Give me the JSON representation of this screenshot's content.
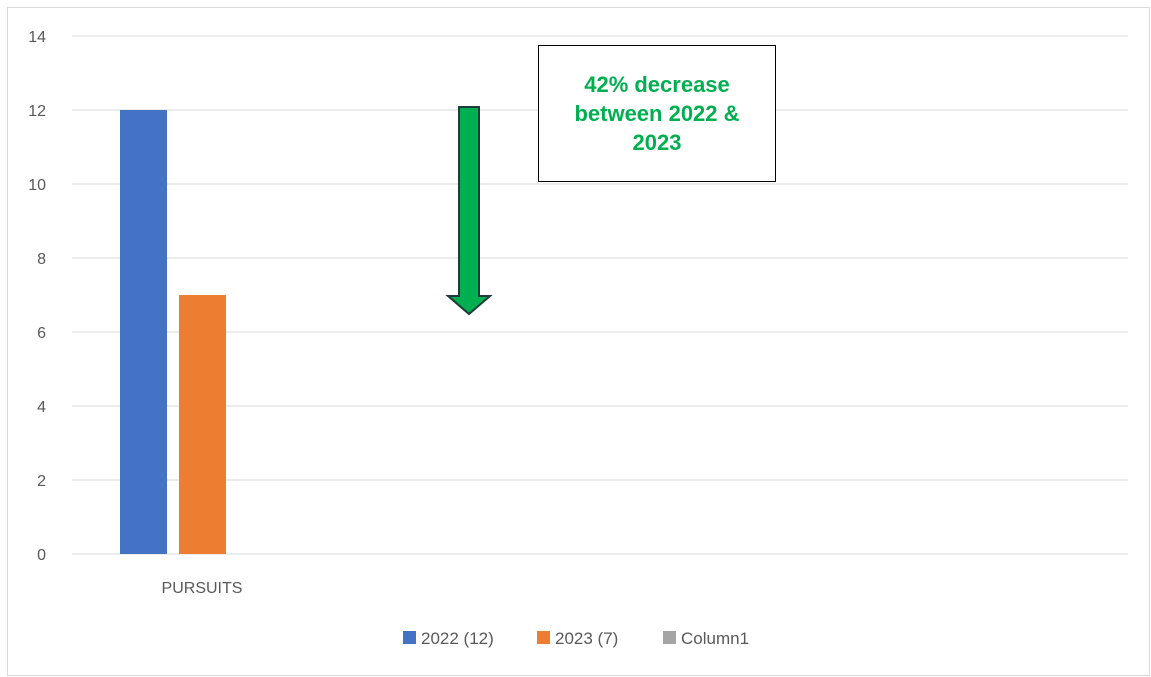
{
  "chart_data": {
    "type": "bar",
    "categories": [
      "PURSUITS"
    ],
    "series": [
      {
        "name": "2022 (12)",
        "values": [
          12
        ],
        "color": "#4472c4"
      },
      {
        "name": "2023 (7)",
        "values": [
          7
        ],
        "color": "#ed7d31"
      },
      {
        "name": "Column1",
        "values": [
          null
        ],
        "color": "#a5a5a5"
      }
    ],
    "yticks": [
      "0",
      "2",
      "4",
      "6",
      "8",
      "10",
      "12",
      "14"
    ],
    "ylim": [
      0,
      14
    ],
    "grid": true,
    "legend": "bottom",
    "annotation": "42% decrease between 2022 & 2023",
    "annotation_color": "#00b050",
    "arrow_color": "#00b050",
    "arrow_direction": "down"
  }
}
